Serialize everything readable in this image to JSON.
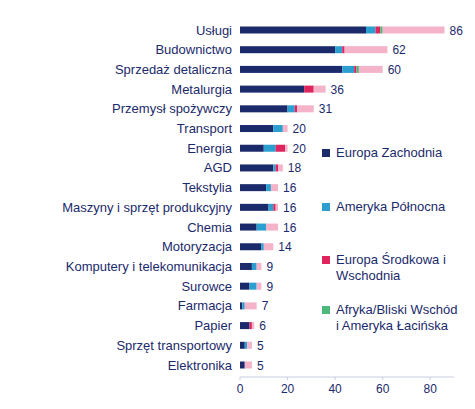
{
  "chart_data": {
    "type": "bar",
    "orientation": "horizontal",
    "stacked": true,
    "grid": false,
    "legend": "right",
    "data_labels": false,
    "categories": [
      "Usługi",
      "Budownictwo",
      "Sprzedaż detaliczna",
      "Metalurgia",
      "Przemysł spożywczy",
      "Transport",
      "Energia",
      "AGD",
      "Tekstylia",
      "Maszyny i sprzęt produkcyjny",
      "Chemia",
      "Motoryzacja",
      "Komputery i telekomunikacja",
      "Surowce",
      "Farmacja",
      "Papier",
      "Sprzęt transportowy",
      "Elektronika"
    ],
    "series": [
      {
        "name": "Europa Zachodnia",
        "color": "#1b2a6b",
        "values": [
          53,
          40,
          43,
          27,
          20,
          14,
          10,
          14,
          11,
          12,
          7,
          9,
          5,
          4,
          1,
          4,
          2,
          2
        ]
      },
      {
        "name": "Ameryka Północna",
        "color": "#2a9fd0",
        "values": [
          4,
          3,
          5,
          0,
          3,
          4,
          5,
          1,
          2,
          2,
          4,
          1,
          2,
          3,
          1,
          0,
          1,
          0
        ]
      },
      {
        "name": "Europa Środkowa i Wschodnia",
        "color": "#e0245e",
        "values": [
          2,
          1,
          1,
          4,
          1,
          0,
          4,
          1,
          0,
          1,
          0,
          0,
          0,
          0,
          0,
          1,
          0,
          0
        ]
      },
      {
        "name": "Afryka/Bliski Wschód i Ameryka Łacińska",
        "color": "#4db87a",
        "values": [
          1,
          0,
          1,
          0,
          0,
          0,
          0,
          0,
          0,
          0,
          0,
          0,
          0,
          0,
          0,
          0,
          0,
          0
        ]
      },
      {
        "name": null,
        "color": "#f4b3c8",
        "values": [
          26,
          18,
          10,
          5,
          7,
          2,
          1,
          2,
          3,
          1,
          5,
          4,
          2,
          2,
          5,
          1,
          2,
          3
        ]
      }
    ],
    "totals": [
      86,
      62,
      60,
      36,
      31,
      20,
      20,
      18,
      16,
      16,
      16,
      14,
      9,
      9,
      7,
      6,
      5,
      5
    ],
    "xlim": [
      0,
      90
    ],
    "xticks": [
      0,
      20,
      40,
      60,
      80
    ]
  }
}
